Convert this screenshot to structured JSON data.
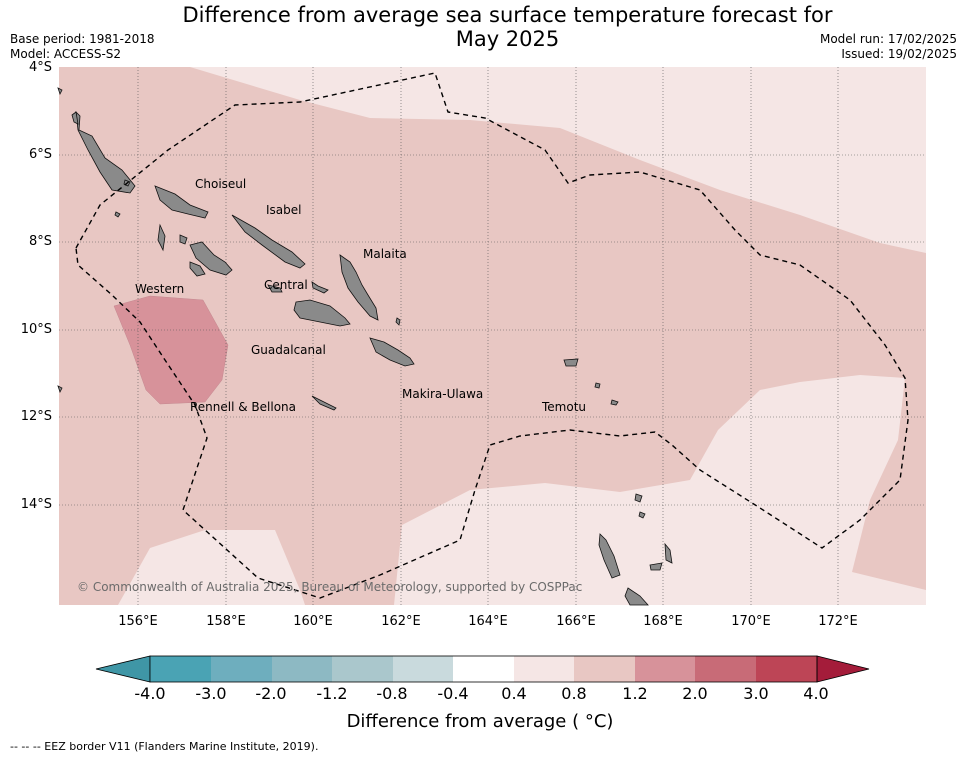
{
  "title": "Difference from average sea surface temperature forecast for May 2025",
  "title_line1": "Difference from average sea surface temperature forecast for",
  "title_line2": "May 2025",
  "meta_left": {
    "base_period": "Base period: 1981-2018",
    "model": "Model: ACCESS-S2"
  },
  "meta_right": {
    "model_run": "Model run: 17/02/2025",
    "issued": "Issued: 19/02/2025"
  },
  "lat_labels": [
    "4°S",
    "6°S",
    "8°S",
    "10°S",
    "12°S",
    "14°S"
  ],
  "lon_labels": [
    "156°E",
    "158°E",
    "160°E",
    "162°E",
    "164°E",
    "166°E",
    "168°E",
    "170°E",
    "172°E"
  ],
  "places": [
    "Choiseul",
    "Isabel",
    "Malaita",
    "Western",
    "Central",
    "Guadalcanal",
    "Makira-Ulawa",
    "Rennell & Bellona",
    "Temotu"
  ],
  "copyright": "© Commonwealth of Australia 2025, Bureau of Meteorology, supported by COSPPac",
  "colorbar": {
    "ticks": [
      "-4.0",
      "-3.0",
      "-2.0",
      "-1.2",
      "-0.8",
      "-0.4",
      "0.4",
      "0.8",
      "1.2",
      "2.0",
      "3.0",
      "4.0"
    ],
    "colors": [
      "#3f96a6",
      "#4aa3b4",
      "#6eaebe",
      "#8db9c3",
      "#aac7cc",
      "#c9dadd",
      "#ffffff",
      "#f5e6e5",
      "#e8c7c3",
      "#d7929a",
      "#c86b77",
      "#bd4556",
      "#a41c3a"
    ],
    "title": "Difference from average (°C)"
  },
  "colorbar_title_text": "Difference from average ( °C)",
  "footnote": "-- -- -- EEZ border V11 (Flanders Marine Institute, 2019).",
  "fill_colors": {
    "light": "#f5e6e5",
    "medium": "#e8c7c3",
    "strong": "#d7929a",
    "land": "#8a8a8a"
  }
}
